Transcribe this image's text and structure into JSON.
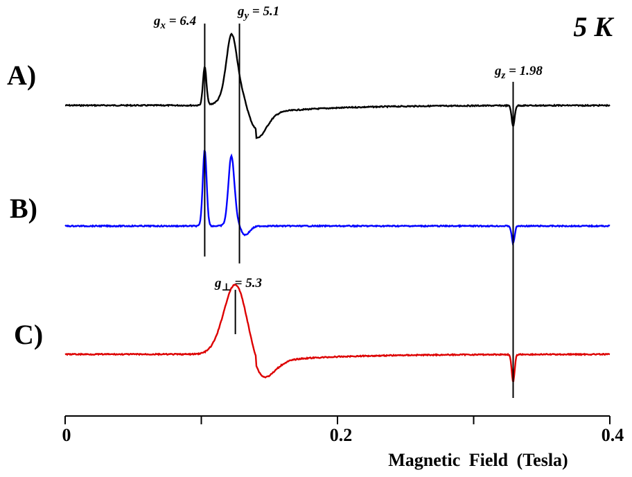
{
  "chart_data": {
    "type": "line",
    "temperature_label": "5 K",
    "xlabel": "Magnetic  Field  (Tesla)",
    "xlim": [
      0,
      0.4
    ],
    "x_ticks": [
      0,
      0.1,
      0.2,
      0.3,
      0.4
    ],
    "x_tick_labels": [
      "0",
      "",
      "0.2",
      "",
      "0.4"
    ],
    "panels": [
      {
        "label": "A)",
        "color": "#000000",
        "baseline": "flat",
        "peaks": [
          {
            "x": 0.1025,
            "amp": 55,
            "w": 0.0018,
            "shape": "peak"
          },
          {
            "x": 0.122,
            "amp": 70,
            "w": 0.005,
            "shape": "peak"
          },
          {
            "x": 0.133,
            "amp": 55,
            "w": 0.012,
            "shape": "derivative"
          },
          {
            "x": 0.329,
            "amp": 30,
            "w": 0.0015,
            "shape": "dip"
          }
        ]
      },
      {
        "label": "B)",
        "color": "#0000ff",
        "baseline": "flat",
        "peaks": [
          {
            "x": 0.1025,
            "amp": 110,
            "w": 0.002,
            "shape": "peak"
          },
          {
            "x": 0.122,
            "amp": 90,
            "w": 0.003,
            "shape": "peak"
          },
          {
            "x": 0.128,
            "amp": 20,
            "w": 0.006,
            "shape": "derivative"
          },
          {
            "x": 0.329,
            "amp": 25,
            "w": 0.0015,
            "shape": "dip"
          }
        ]
      },
      {
        "label": "C)",
        "color": "#dd0000",
        "baseline": "flat",
        "peaks": [
          {
            "x": 0.125,
            "amp": 75,
            "w": 0.012,
            "shape": "peak"
          },
          {
            "x": 0.135,
            "amp": 40,
            "w": 0.015,
            "shape": "derivative"
          },
          {
            "x": 0.329,
            "amp": 40,
            "w": 0.0015,
            "shape": "dip"
          }
        ]
      }
    ],
    "markers": [
      {
        "name": "gx",
        "symbol": "g",
        "sub": "x",
        "text": " = 6.4",
        "x": 0.1025
      },
      {
        "name": "gy",
        "symbol": "g",
        "sub": "y",
        "text": " = 5.1",
        "x": 0.128
      },
      {
        "name": "gz",
        "symbol": "g",
        "sub": "z",
        "text": " = 1.98",
        "x": 0.329
      },
      {
        "name": "gperp",
        "symbol": "g",
        "sub": "⊥",
        "text": " = 5.3",
        "x": 0.125
      }
    ]
  }
}
